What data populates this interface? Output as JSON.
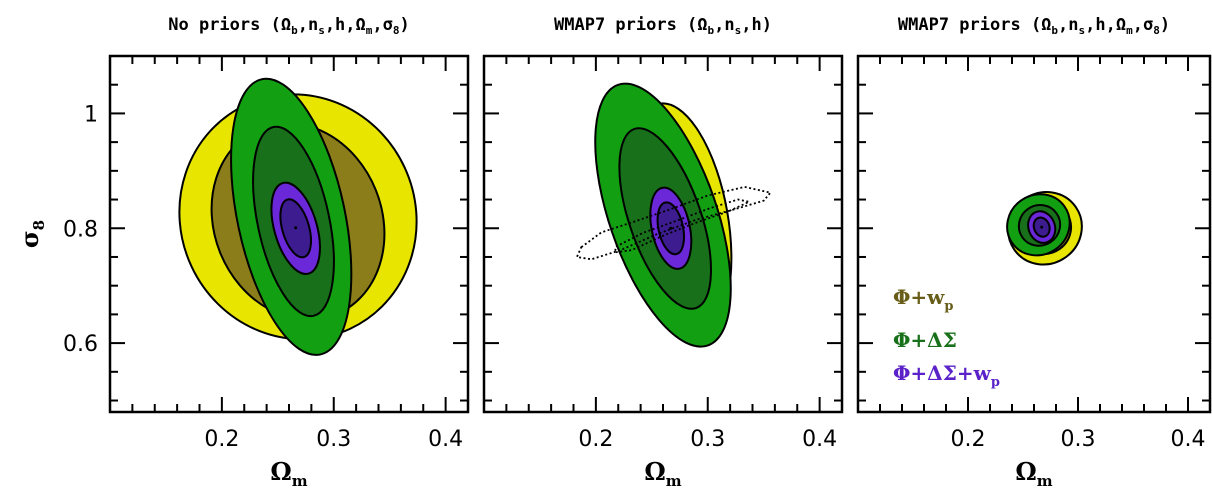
{
  "chart_data": [
    {
      "type": "contour",
      "title": "No priors (Ωb,ns,h,Ωm,σ8)",
      "title_parts": {
        "pre": "No priors (Ω",
        "s1": "b",
        "m1": ",n",
        "s2": "s",
        "m2": ",h,Ω",
        "s3": "m",
        "m3": ",σ",
        "s4": "8",
        "post": ")"
      },
      "xlabel": "Ωm",
      "ylabel": "σ8",
      "xlim": [
        0.1,
        0.42
      ],
      "ylim": [
        0.48,
        1.1
      ],
      "xticks": [
        0.2,
        0.3,
        0.4
      ],
      "xtick_labels": [
        "0.2",
        "0.3",
        "0.4"
      ],
      "yticks": [
        0.6,
        0.8,
        1.0
      ],
      "ytick_labels": [
        "0.6",
        "0.8",
        "1"
      ],
      "ellipses": [
        {
          "series": "Phi+wp (outer)",
          "cx": 0.268,
          "cy": 0.82,
          "rx": 0.105,
          "ry": 0.215,
          "rot": -25,
          "fill": "#e8e600"
        },
        {
          "series": "Phi+wp (inner)",
          "cx": 0.268,
          "cy": 0.812,
          "rx": 0.075,
          "ry": 0.175,
          "rot": -22,
          "fill": "#8a7d1a"
        },
        {
          "series": "Phi+DeltaSigma (outer)",
          "cx": 0.262,
          "cy": 0.82,
          "rx": 0.048,
          "ry": 0.245,
          "rot": -12,
          "fill": "#12a012"
        },
        {
          "series": "Phi+DeltaSigma (inner)",
          "cx": 0.264,
          "cy": 0.812,
          "rx": 0.032,
          "ry": 0.168,
          "rot": -12,
          "fill": "#18701a"
        },
        {
          "series": "Phi+DeltaSigma+wp (outer)",
          "cx": 0.266,
          "cy": 0.8,
          "rx": 0.019,
          "ry": 0.082,
          "rot": -16,
          "fill": "#6a28d8"
        },
        {
          "series": "Phi+DeltaSigma+wp (inner)",
          "cx": 0.266,
          "cy": 0.8,
          "rx": 0.012,
          "ry": 0.052,
          "rot": -16,
          "fill": "#3c1c8e"
        }
      ],
      "center": [
        0.266,
        0.801
      ]
    },
    {
      "type": "contour",
      "title": "WMAP7 priors (Ωb,ns,h)",
      "title_parts": {
        "pre": "WMAP7 priors (Ω",
        "s1": "b",
        "m1": ",n",
        "s2": "s",
        "m2": ",h",
        "s3": "",
        "m3": "",
        "s4": "",
        "post": ")"
      },
      "xlabel": "Ωm",
      "ylabel": "",
      "xlim": [
        0.1,
        0.42
      ],
      "ylim": [
        0.48,
        1.1
      ],
      "xticks": [
        0.2,
        0.3,
        0.4
      ],
      "xtick_labels": [
        "0.2",
        "0.3",
        "0.4"
      ],
      "yticks": [
        0.6,
        0.8,
        1.0
      ],
      "ytick_labels": [],
      "ellipses": [
        {
          "series": "Phi+wp (outer)",
          "cx": 0.275,
          "cy": 0.815,
          "rx": 0.043,
          "ry": 0.205,
          "rot": -10,
          "fill": "#e8e600"
        },
        {
          "series": "Phi+wp (inner)",
          "cx": 0.276,
          "cy": 0.8,
          "rx": 0.03,
          "ry": 0.135,
          "rot": -10,
          "fill": "#8a7d1a"
        },
        {
          "series": "Phi+DeltaSigma (outer)",
          "cx": 0.26,
          "cy": 0.823,
          "rx": 0.048,
          "ry": 0.24,
          "rot": -19,
          "fill": "#12a012"
        },
        {
          "series": "Phi+DeltaSigma (inner)",
          "cx": 0.262,
          "cy": 0.817,
          "rx": 0.032,
          "ry": 0.165,
          "rot": -19,
          "fill": "#18701a"
        },
        {
          "series": "Phi+DeltaSigma+wp (outer)",
          "cx": 0.267,
          "cy": 0.8,
          "rx": 0.017,
          "ry": 0.072,
          "rot": -12,
          "fill": "#6a28d8"
        },
        {
          "series": "Phi+DeltaSigma+wp (inner)",
          "cx": 0.267,
          "cy": 0.8,
          "rx": 0.011,
          "ry": 0.046,
          "rot": -12,
          "fill": "#3c1c8e"
        }
      ],
      "dotted_contours": [
        [
          [
            0.187,
            0.767
          ],
          [
            0.205,
            0.793
          ],
          [
            0.235,
            0.812
          ],
          [
            0.265,
            0.832
          ],
          [
            0.3,
            0.857
          ],
          [
            0.333,
            0.872
          ],
          [
            0.356,
            0.862
          ],
          [
            0.35,
            0.848
          ],
          [
            0.322,
            0.832
          ],
          [
            0.29,
            0.815
          ],
          [
            0.255,
            0.79
          ],
          [
            0.222,
            0.762
          ],
          [
            0.196,
            0.746
          ],
          [
            0.183,
            0.75
          ]
        ],
        [
          [
            0.218,
            0.768
          ],
          [
            0.242,
            0.792
          ],
          [
            0.272,
            0.813
          ],
          [
            0.302,
            0.835
          ],
          [
            0.327,
            0.85
          ],
          [
            0.337,
            0.846
          ],
          [
            0.318,
            0.829
          ],
          [
            0.29,
            0.81
          ],
          [
            0.26,
            0.787
          ],
          [
            0.232,
            0.762
          ],
          [
            0.217,
            0.758
          ]
        ]
      ],
      "center": [
        0.267,
        0.8
      ]
    },
    {
      "type": "contour",
      "title": "WMAP7 priors (Ωb,ns,h,Ωm,σ8)",
      "title_parts": {
        "pre": "WMAP7 priors (Ω",
        "s1": "b",
        "m1": ",n",
        "s2": "s",
        "m2": ",h,Ω",
        "s3": "m",
        "m3": ",σ",
        "s4": "8",
        "post": ")"
      },
      "xlabel": "Ωm",
      "ylabel": "",
      "xlim": [
        0.1,
        0.42
      ],
      "ylim": [
        0.48,
        1.1
      ],
      "xticks": [
        0.2,
        0.3,
        0.4
      ],
      "xtick_labels": [
        "0.2",
        "0.3",
        "0.4"
      ],
      "yticks": [
        0.6,
        0.8,
        1.0
      ],
      "ytick_labels": [],
      "ellipses": [
        {
          "series": "Phi+wp (outer)",
          "cx": 0.27,
          "cy": 0.8,
          "rx": 0.034,
          "ry": 0.062,
          "rot": -35,
          "fill": "#e8e600"
        },
        {
          "series": "Phi+wp (inner)",
          "cx": 0.27,
          "cy": 0.8,
          "rx": 0.024,
          "ry": 0.044,
          "rot": -35,
          "fill": "#8a7d1a"
        },
        {
          "series": "Phi+DeltaSigma (outer)",
          "cx": 0.264,
          "cy": 0.806,
          "rx": 0.029,
          "ry": 0.052,
          "rot": -35,
          "fill": "#12a012"
        },
        {
          "series": "Phi+DeltaSigma (inner)",
          "cx": 0.265,
          "cy": 0.805,
          "rx": 0.019,
          "ry": 0.035,
          "rot": -35,
          "fill": "#18701a"
        },
        {
          "series": "Phi+DeltaSigma+wp (outer)",
          "cx": 0.267,
          "cy": 0.802,
          "rx": 0.012,
          "ry": 0.028,
          "rot": -20,
          "fill": "#6a28d8"
        },
        {
          "series": "Phi+DeltaSigma+wp (inner)",
          "cx": 0.267,
          "cy": 0.802,
          "rx": 0.007,
          "ry": 0.017,
          "rot": -20,
          "fill": "#3c1c8e"
        }
      ],
      "center": [
        0.267,
        0.802
      ],
      "legend": [
        {
          "label": "Φ+w",
          "sub": "p",
          "color": "#675d19"
        },
        {
          "label": "Φ+ΔΣ",
          "sub": "",
          "color": "#18701a"
        },
        {
          "label": "Φ+ΔΣ+w",
          "sub": "p",
          "color": "#5a22c8"
        }
      ],
      "legend_position": "lower-left"
    }
  ]
}
